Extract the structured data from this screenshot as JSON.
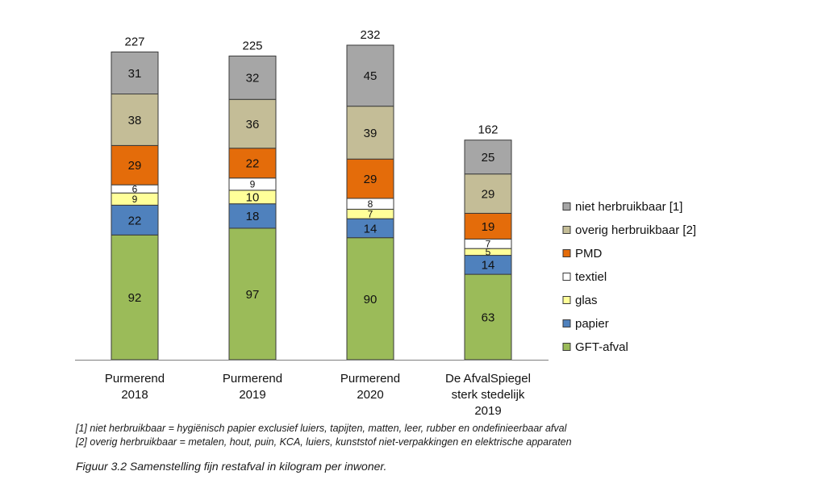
{
  "chart_data": {
    "type": "bar",
    "stacked": true,
    "categories": [
      [
        "Purmerend",
        "2018"
      ],
      [
        "Purmerend",
        "2019"
      ],
      [
        "Purmerend",
        "2020"
      ],
      [
        "De AfvalSpiegel",
        "sterk stedelijk",
        "2019"
      ]
    ],
    "totals": [
      "227",
      "225",
      "232",
      "162"
    ],
    "series": [
      {
        "name": "GFT-afval",
        "color": "#9bbb59",
        "values": [
          92,
          97,
          90,
          63
        ]
      },
      {
        "name": "papier",
        "color": "#4f81bd",
        "values": [
          22,
          18,
          14,
          14
        ]
      },
      {
        "name": "glas",
        "color": "#ffff99",
        "values": [
          9,
          10,
          7,
          5
        ]
      },
      {
        "name": "textiel",
        "color": "#ffffff",
        "values": [
          6,
          9,
          8,
          7
        ]
      },
      {
        "name": "PMD",
        "color": "#e46c0a",
        "values": [
          29,
          22,
          29,
          19
        ]
      },
      {
        "name": "overig herbruikbaar [2]",
        "color": "#c4bd97",
        "values": [
          38,
          36,
          39,
          29
        ]
      },
      {
        "name": "niet herbruikbaar [1]",
        "color": "#a6a6a6",
        "values": [
          31,
          32,
          45,
          25
        ]
      }
    ],
    "legend_order": [
      "niet herbruikbaar [1]",
      "overig herbruikbaar [2]",
      "PMD",
      "textiel",
      "glas",
      "papier",
      "GFT-afval"
    ],
    "legend_position": "right",
    "ylim": [
      0,
      232
    ],
    "xlabel": "",
    "ylabel": ""
  },
  "footnotes": [
    "[1] niet herbruikbaar = hygiënisch papier exclusief luiers, tapijten, matten, leer, rubber en ondefinieerbaar afval",
    "[2] overig herbruikbaar = metalen, hout, puin, KCA, luiers, kunststof niet-verpakkingen en elektrische apparaten"
  ],
  "caption": "Figuur 3.2  Samenstelling fijn restafval in kilogram per inwoner."
}
